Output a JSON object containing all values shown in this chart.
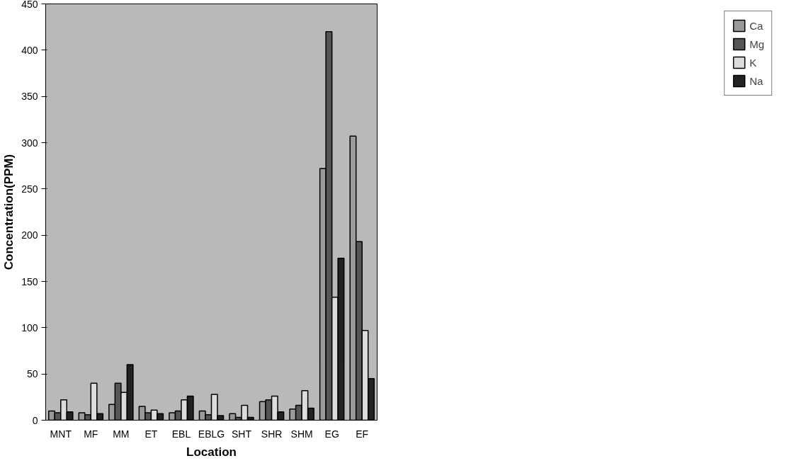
{
  "chart_data": {
    "type": "bar",
    "xlabel": "Location",
    "ylabel": "Concentration(PPM)",
    "categories": [
      "MNT",
      "MF",
      "MM",
      "ET",
      "EBL",
      "EBLG",
      "SHT",
      "SHR",
      "SHM",
      "EG",
      "EF"
    ],
    "series": [
      {
        "name": "Ca",
        "color": "#9a9a9a",
        "values": [
          10,
          8,
          17,
          15,
          8,
          10,
          7,
          20,
          12,
          272,
          307
        ]
      },
      {
        "name": "Mg",
        "color": "#555555",
        "values": [
          8,
          6,
          40,
          8,
          10,
          6,
          3,
          22,
          16,
          420,
          193
        ]
      },
      {
        "name": "K",
        "color": "#dcdcdc",
        "values": [
          22,
          40,
          30,
          11,
          22,
          28,
          16,
          26,
          32,
          133,
          97
        ]
      },
      {
        "name": "Na",
        "color": "#222222",
        "values": [
          9,
          7,
          60,
          7,
          26,
          5,
          3,
          9,
          13,
          175,
          45
        ]
      }
    ],
    "ylim": [
      0,
      450
    ],
    "yticks": [
      0,
      50,
      100,
      150,
      200,
      250,
      300,
      350,
      400,
      450
    ],
    "grid": false,
    "legend": "right"
  }
}
